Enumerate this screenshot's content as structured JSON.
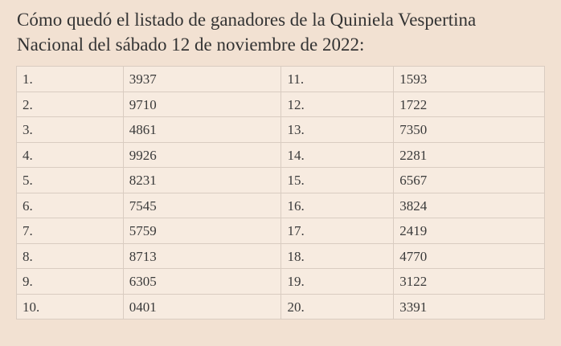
{
  "header": {
    "lines": [
      "Cómo quedó el listado de ganadores de la Quiniela Vespertina",
      "Nacional del sábado 12 de noviembre de 2022:"
    ]
  },
  "table": {
    "rows": [
      [
        "1.",
        "3937",
        "11.",
        "1593"
      ],
      [
        "2.",
        "9710",
        "12.",
        "1722"
      ],
      [
        "3.",
        "4861",
        "13.",
        "7350"
      ],
      [
        "4.",
        "9926",
        "14.",
        "2281"
      ],
      [
        "5.",
        "8231",
        "15.",
        "6567"
      ],
      [
        "6.",
        "7545",
        "16.",
        "3824"
      ],
      [
        "7.",
        "5759",
        "17.",
        "2419"
      ],
      [
        "8.",
        "8713",
        "18.",
        "4770"
      ],
      [
        "9.",
        "6305",
        "19.",
        "3122"
      ],
      [
        "10.",
        "0401",
        "20.",
        "3391"
      ]
    ]
  }
}
